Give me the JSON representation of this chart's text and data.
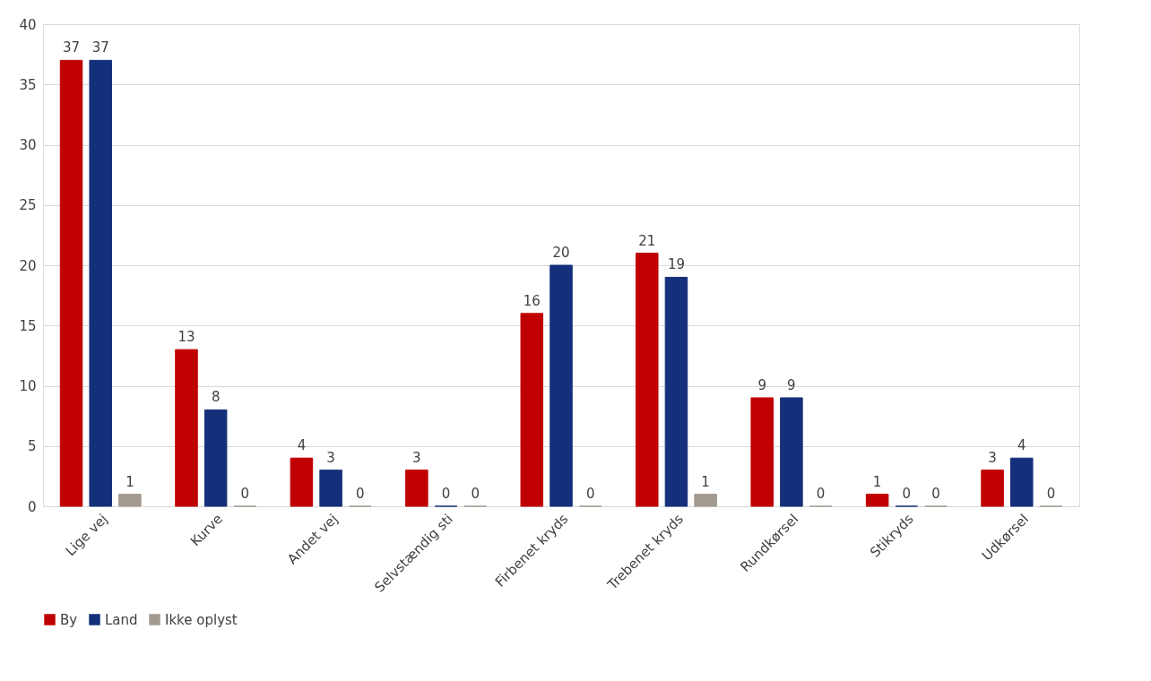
{
  "chart_data": {
    "type": "bar",
    "categories": [
      "Lige vej",
      "Kurve",
      "Andet vej",
      "Selvstændig sti",
      "Firbenet kryds",
      "Trebenet kryds",
      "Rundkørsel",
      "Stikryds",
      "Udkørsel"
    ],
    "series": [
      {
        "name": "By",
        "color": "#c00000",
        "values": [
          37,
          13,
          4,
          3,
          16,
          21,
          9,
          1,
          3
        ]
      },
      {
        "name": "Land",
        "color": "#15307a",
        "values": [
          37,
          8,
          3,
          0,
          20,
          19,
          9,
          0,
          4
        ]
      },
      {
        "name": "Ikke oplyst",
        "color": "#a39a90",
        "values": [
          1,
          0,
          0,
          0,
          0,
          1,
          0,
          0,
          0
        ]
      }
    ],
    "ylim": [
      0,
      40
    ],
    "yticks": [
      0,
      5,
      10,
      15,
      20,
      25,
      30,
      35,
      40
    ],
    "grid": "y",
    "legend": "bottom",
    "data_labels": true
  }
}
